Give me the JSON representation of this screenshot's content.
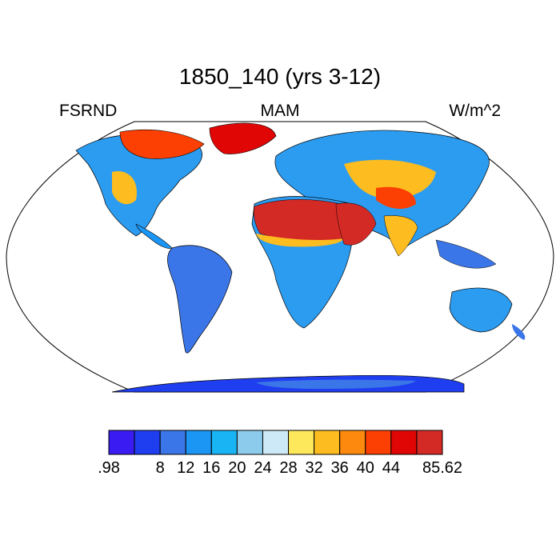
{
  "map": {
    "title": "1850_140 (yrs 3-12)",
    "left_label": "FSRND",
    "center_label": "MAM",
    "right_label": "W/m^2"
  },
  "colorbar": {
    "colors": [
      "#3a1bf2",
      "#1f3ef0",
      "#3b76e8",
      "#1b96f5",
      "#18b4f3",
      "#8ccbec",
      "#cde8f6",
      "#fde85c",
      "#fdbc1f",
      "#fd8a0e",
      "#fc3f02",
      "#e00606",
      "#d42a26"
    ],
    "tick_labels": [
      ".98",
      "8",
      "12",
      "16",
      "20",
      "24",
      "28",
      "32",
      "36",
      "40",
      "44",
      "85.62"
    ]
  },
  "land_color": "#2c9cf0",
  "ocean_color": "#ffffff"
}
